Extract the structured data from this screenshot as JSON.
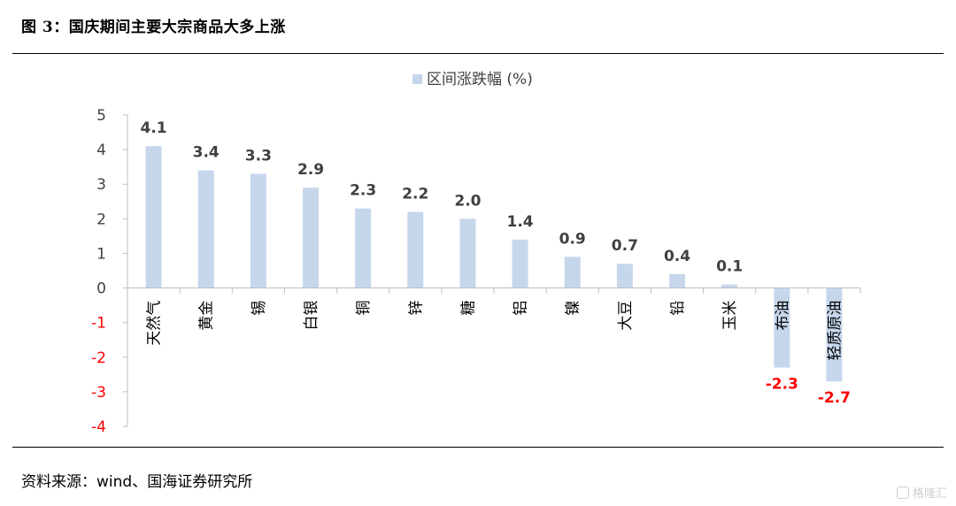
{
  "figure": {
    "title": "图 3：国庆期间主要大宗商品大多上涨",
    "source": "资料来源：wind、国海证券研究所",
    "watermark": "格隆汇"
  },
  "colors": {
    "bar": "#c6d7ec",
    "positive_label": "#404040",
    "negative_label": "#ff0000",
    "axis": "#bfbfbf"
  },
  "chart_data": {
    "type": "bar",
    "title": "",
    "xlabel": "",
    "ylabel": "",
    "categories": [
      "天然气",
      "黄金",
      "锡",
      "白银",
      "铜",
      "锌",
      "糖",
      "铝",
      "镍",
      "大豆",
      "铅",
      "玉米",
      "布油",
      "轻质原油"
    ],
    "series": [
      {
        "name": "区间涨跌幅 (%)",
        "values": [
          4.1,
          3.4,
          3.3,
          2.9,
          2.3,
          2.2,
          2.0,
          1.4,
          0.9,
          0.7,
          0.4,
          0.1,
          -2.3,
          -2.7
        ],
        "value_labels": [
          "4.1",
          "3.4",
          "3.3",
          "2.9",
          "2.3",
          "2.2",
          "2.0",
          "1.4",
          "0.9",
          "0.7",
          "0.4",
          "0.1",
          "-2.3",
          "-2.7"
        ]
      }
    ],
    "ylim": [
      -4,
      5
    ],
    "yticks": [
      5,
      4,
      3,
      2,
      1,
      0,
      -1,
      -2,
      -3,
      -4
    ],
    "ytick_labels": [
      "5",
      "4",
      "3",
      "2",
      "1",
      "0",
      "-1",
      "-2",
      "-3",
      "-4"
    ],
    "legend_position": "top-center",
    "grid": false
  }
}
